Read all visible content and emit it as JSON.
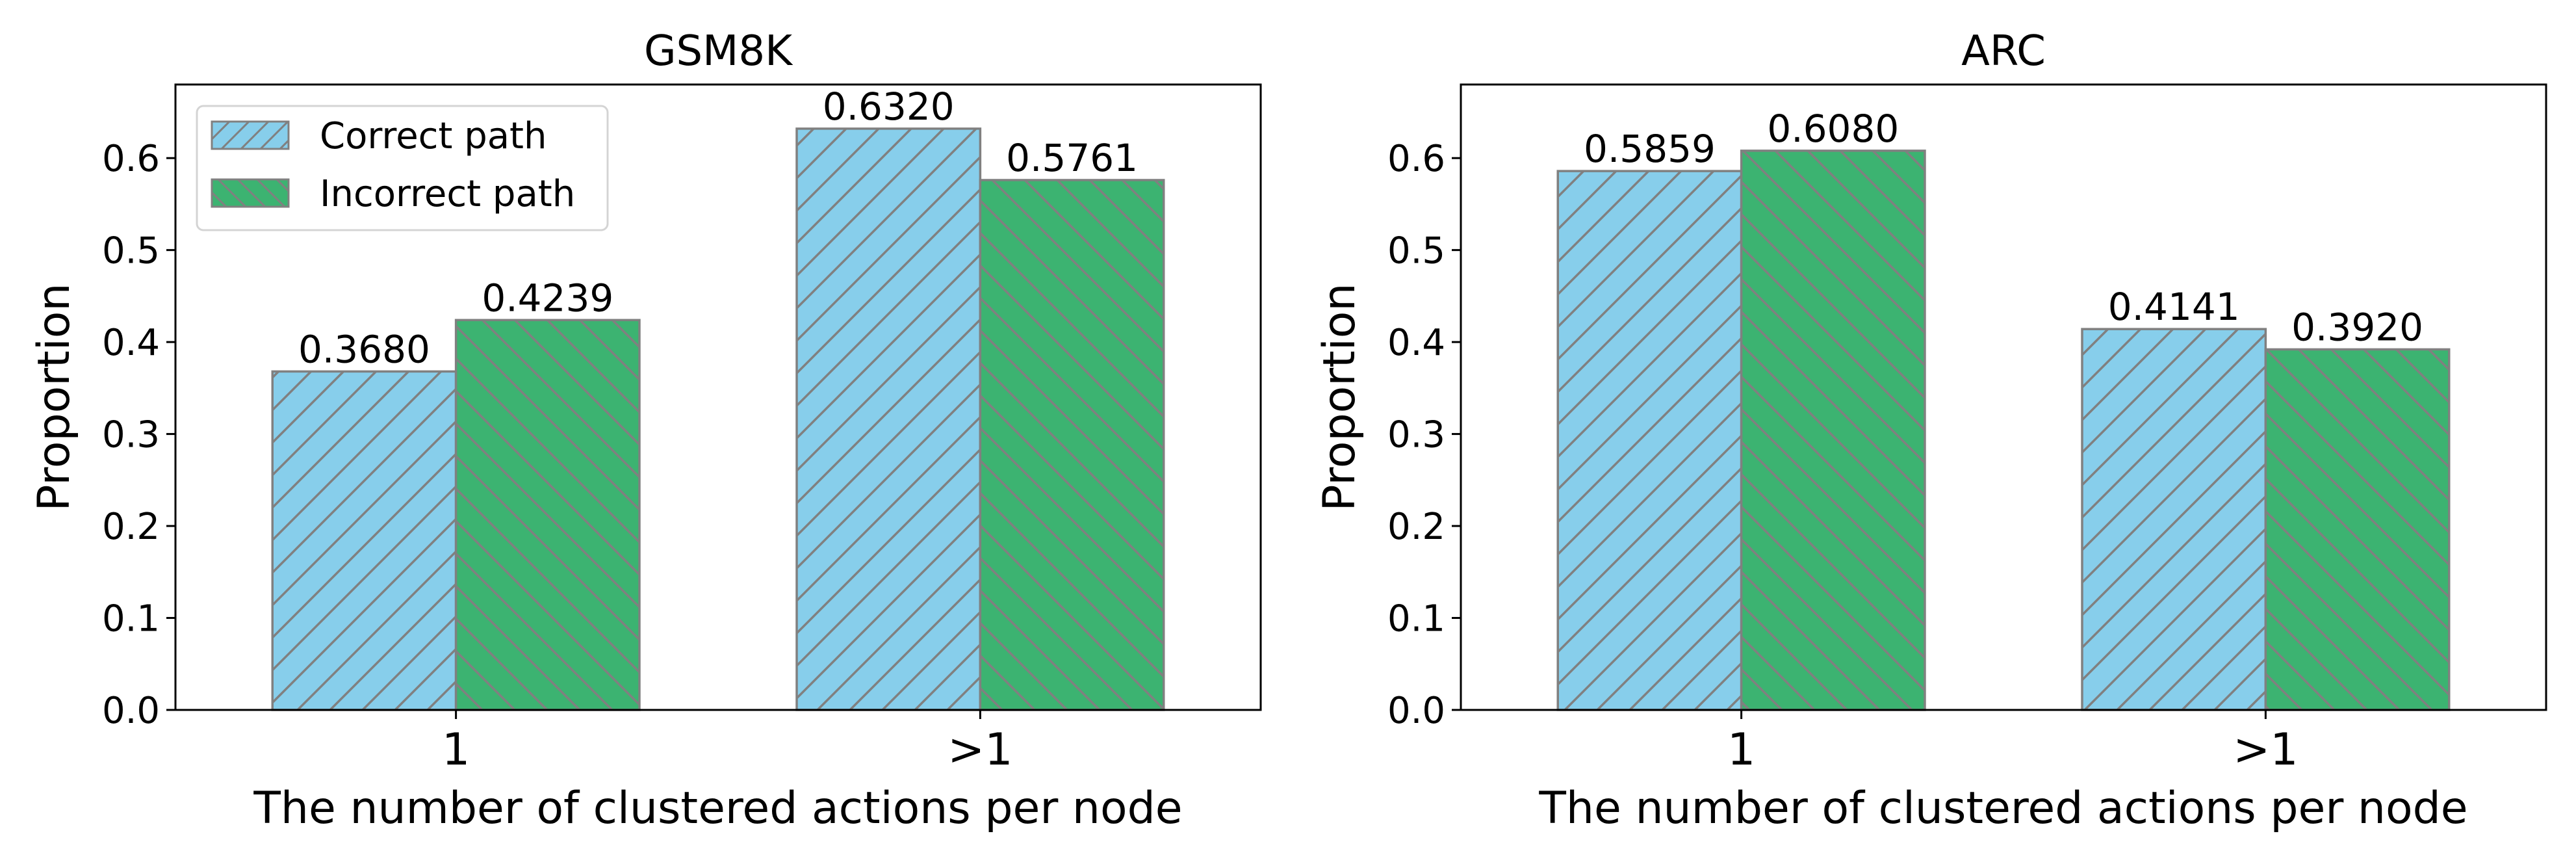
{
  "colors": {
    "correct": "#87ceeb",
    "incorrect": "#3cb371",
    "edge": "#808080",
    "axis": "#000000"
  },
  "chart_data": [
    {
      "type": "bar",
      "title": "GSM8K",
      "xlabel": "The number of clustered actions per node",
      "ylabel": "Proportion",
      "categories": [
        "1",
        ">1"
      ],
      "ylim": [
        0,
        0.68
      ],
      "yticks": [
        "0.0",
        "0.1",
        "0.2",
        "0.3",
        "0.4",
        "0.5",
        "0.6"
      ],
      "legend": "top-left",
      "series": [
        {
          "name": "Correct path",
          "values": [
            0.368,
            0.632
          ],
          "labels": [
            "0.3680",
            "0.6320"
          ],
          "hatch": "forward"
        },
        {
          "name": "Incorrect path",
          "values": [
            0.4239,
            0.5761
          ],
          "labels": [
            "0.4239",
            "0.5761"
          ],
          "hatch": "backward"
        }
      ]
    },
    {
      "type": "bar",
      "title": "ARC",
      "xlabel": "The number of clustered actions per node",
      "ylabel": "Proportion",
      "categories": [
        "1",
        ">1"
      ],
      "ylim": [
        0,
        0.68
      ],
      "yticks": [
        "0.0",
        "0.1",
        "0.2",
        "0.3",
        "0.4",
        "0.5",
        "0.6"
      ],
      "series": [
        {
          "name": "Correct path",
          "values": [
            0.5859,
            0.4141
          ],
          "labels": [
            "0.5859",
            "0.4141"
          ],
          "hatch": "forward"
        },
        {
          "name": "Incorrect path",
          "values": [
            0.608,
            0.392
          ],
          "labels": [
            "0.6080",
            "0.3920"
          ],
          "hatch": "backward"
        }
      ]
    }
  ]
}
